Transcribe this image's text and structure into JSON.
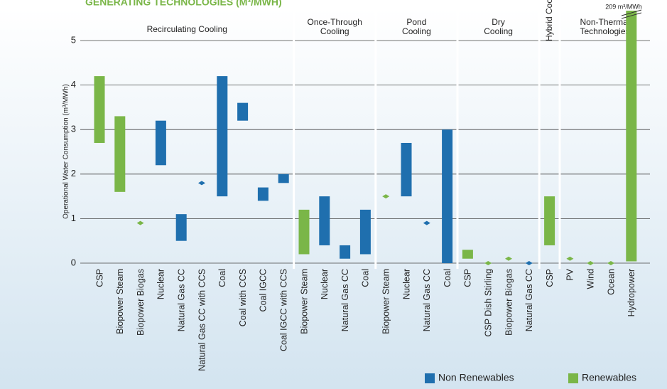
{
  "chart_data": {
    "type": "range_bar",
    "title": "GENERATING TECHNOLOGIES (M³/MWH)",
    "y_label": "Operational Water Consumption (m³/MWh)",
    "annotation": "209 m³/MWh",
    "groups": [
      [
        "Recirculating Cooling"
      ],
      [
        "Once-Through",
        "Cooling"
      ],
      [
        "Pond",
        "Cooling"
      ],
      [
        "Dry",
        "Cooling"
      ],
      [
        "Hybrid Cooling"
      ],
      [
        "Non-Thermal",
        "Technologies"
      ]
    ],
    "categories": [
      "CSP",
      "Biopower Steam",
      "Biopower Biogas",
      "Nuclear",
      "Natural Gas CC",
      "Natural Gas CC with CCS",
      "Coal",
      "Coal with CCS",
      "Coal IGCC",
      "Coal IGCC with CCS",
      "Biopower Steam",
      "Nuclear",
      "Natural Gas CC",
      "Coal",
      "Biopower Steam",
      "Nuclear",
      "Natural Gas CC",
      "Coal",
      "CSP",
      "CSP Dish Stirling",
      "Biopower Biogas",
      "Natural Gas CC",
      "CSP",
      "PV",
      "Wind",
      "Ocean",
      "Hydropower"
    ],
    "series": [
      {
        "name": "Non Renewables",
        "color": "#1f6fae",
        "low": [
          null,
          null,
          null,
          2.2,
          0.5,
          1.8,
          1.5,
          3.2,
          1.4,
          1.8,
          null,
          0.4,
          0.1,
          0.2,
          null,
          1.5,
          0.9,
          0,
          null,
          null,
          null,
          0,
          null,
          null,
          null,
          null,
          null
        ],
        "high": [
          null,
          null,
          null,
          3.2,
          1.1,
          1.8,
          4.2,
          3.6,
          1.7,
          2.0,
          null,
          1.5,
          0.4,
          1.2,
          null,
          2.7,
          0.9,
          3.0,
          null,
          null,
          null,
          0,
          null,
          null,
          null,
          null,
          null
        ]
      },
      {
        "name": "Renewables",
        "color": "#7ab648",
        "low": [
          2.7,
          1.6,
          0.9,
          null,
          null,
          null,
          null,
          null,
          null,
          null,
          0.2,
          null,
          null,
          null,
          1.5,
          null,
          null,
          null,
          0.1,
          0,
          0.1,
          null,
          0.4,
          0.1,
          0,
          0,
          0.04
        ],
        "high": [
          4.2,
          3.3,
          0.9,
          null,
          null,
          null,
          null,
          null,
          null,
          null,
          1.2,
          null,
          null,
          null,
          1.5,
          null,
          null,
          null,
          0.3,
          0,
          0.1,
          null,
          1.5,
          0.1,
          0,
          0,
          209
        ]
      }
    ],
    "ylim": [
      0,
      5
    ],
    "yticks": [
      0,
      1,
      2,
      3,
      4,
      5
    ],
    "grid": true
  }
}
